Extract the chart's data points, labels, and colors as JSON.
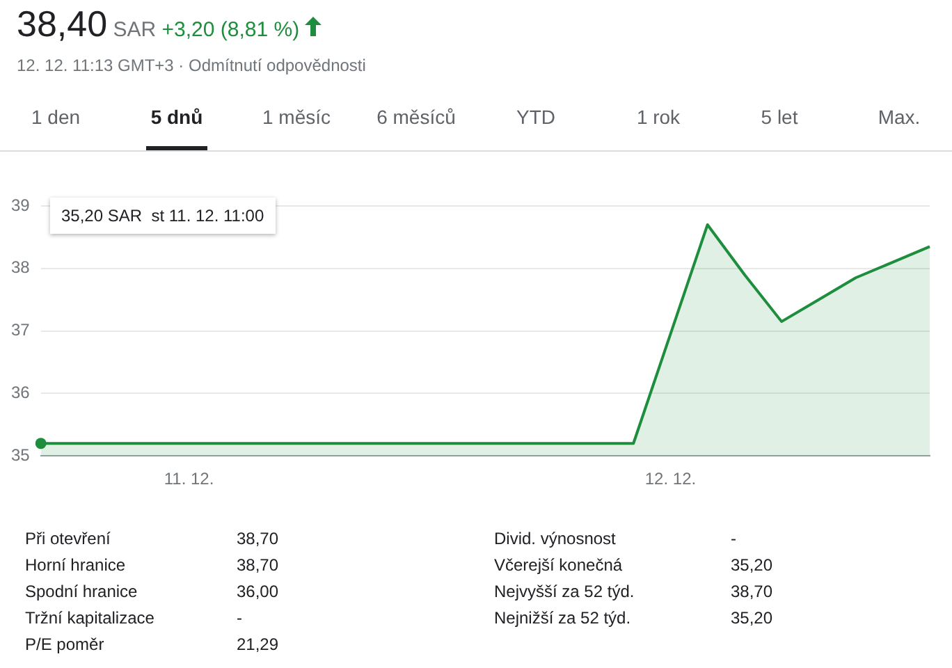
{
  "chart_data": {
    "type": "area",
    "title": "38,40 SAR +3,20 (8,81 %)",
    "subtitle": "12. 12. 11:13 GMT+3 · Odmítnutí odpovědnosti",
    "categories": [
      null,
      null,
      null,
      null,
      "11. 12.",
      null,
      null,
      null,
      null,
      null,
      null,
      null,
      null,
      null,
      null,
      null,
      null,
      "12. 12.",
      null,
      null,
      null,
      null,
      null,
      null,
      null
    ],
    "series": [
      {
        "color": "#1e8e3e",
        "values": [
          35.2,
          35.2,
          35.2,
          35.2,
          35.2,
          35.2,
          35.2,
          35.2,
          35.2,
          35.2,
          35.2,
          35.2,
          35.2,
          35.2,
          35.2,
          35.2,
          35.2,
          36.95,
          38.7,
          37.9,
          37.15,
          37.5,
          37.85,
          38.1,
          38.35
        ]
      }
    ],
    "ylim": [
      35,
      39
    ],
    "yticks": [
      35,
      36,
      37,
      38,
      39
    ],
    "grid": "y",
    "legend": false,
    "marker": "none",
    "annotations": [
      "1 den",
      "5 dnů",
      "1 měsíc",
      "6 měsíců",
      "YTD",
      "1 rok",
      "5 let",
      "Max.",
      "Při otevření",
      "38,70",
      "Horní hranice",
      "38,70",
      "Spodní hranice",
      "36,00",
      "Tržní kapitalizace",
      "-",
      "P/E poměr",
      "21,29",
      "Divid. výnosnost",
      "-",
      "Včerejší konečná",
      "35,20",
      "Nejvyšší za 52 týd.",
      "38,70",
      "Nejnižší za 52 týd.",
      "35,20",
      "35,20 SAR  st 11. 12. 11:00"
    ]
  }
}
